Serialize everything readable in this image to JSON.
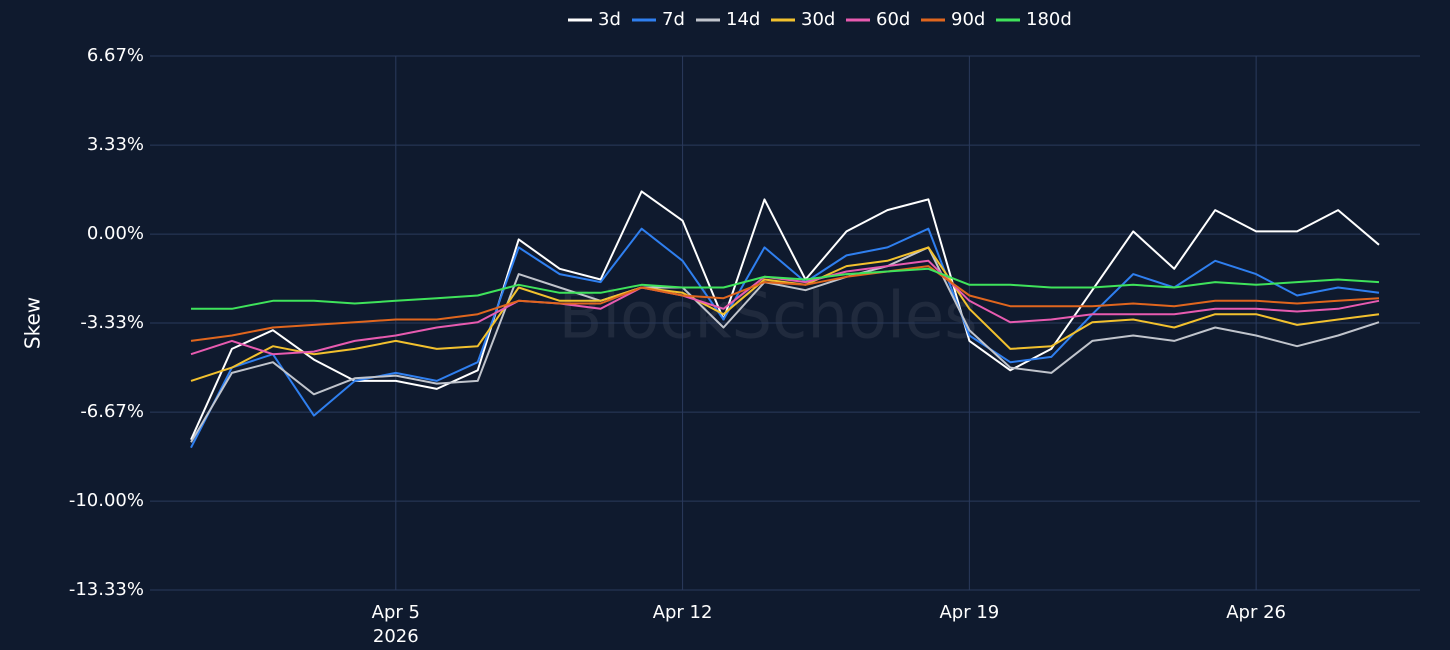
{
  "chart_data": {
    "type": "line",
    "y_label": "Skew",
    "watermark": "BlockScholes",
    "x": [
      "2026-03-31",
      "2026-04-01",
      "2026-04-02",
      "2026-04-03",
      "2026-04-04",
      "2026-04-05",
      "2026-04-06",
      "2026-04-07",
      "2026-04-08",
      "2026-04-09",
      "2026-04-10",
      "2026-04-11",
      "2026-04-12",
      "2026-04-13",
      "2026-04-14",
      "2026-04-15",
      "2026-04-16",
      "2026-04-17",
      "2026-04-18",
      "2026-04-19",
      "2026-04-20",
      "2026-04-21",
      "2026-04-22",
      "2026-04-23",
      "2026-04-24",
      "2026-04-25",
      "2026-04-26",
      "2026-04-27",
      "2026-04-28",
      "2026-04-29"
    ],
    "xlim": [
      "2026-03-30",
      "2026-04-30"
    ],
    "xticks": [
      {
        "value": "2026-04-05",
        "label": "Apr 5"
      },
      {
        "value": "2026-04-12",
        "label": "Apr 12"
      },
      {
        "value": "2026-04-19",
        "label": "Apr 19"
      },
      {
        "value": "2026-04-26",
        "label": "Apr 26"
      }
    ],
    "x_year_label": "2026",
    "ylim": [
      -13.33,
      6.67
    ],
    "yticks": [
      {
        "value": 6.67,
        "label": "6.67%"
      },
      {
        "value": 3.33,
        "label": "3.33%"
      },
      {
        "value": 0,
        "label": "0.00%"
      },
      {
        "value": -3.33,
        "label": "-3.33%"
      },
      {
        "value": -6.67,
        "label": "-6.67%"
      },
      {
        "value": -10,
        "label": "-10.00%"
      },
      {
        "value": -13.33,
        "label": "-13.33%"
      }
    ],
    "grid": true,
    "legend": "top",
    "series": [
      {
        "name": "3d",
        "color": "#ffffff",
        "values": [
          -7.7,
          -4.3,
          -3.6,
          -4.7,
          -5.5,
          -5.5,
          -5.8,
          -5.1,
          -0.2,
          -1.3,
          -1.7,
          1.6,
          0.5,
          -3.2,
          1.3,
          -1.7,
          0.1,
          0.9,
          1.3,
          -4.0,
          -5.1,
          -4.3,
          -2.1,
          0.1,
          -1.3,
          0.9,
          0.1,
          0.1,
          0.9,
          -0.4
        ]
      },
      {
        "name": "7d",
        "color": "#2f7fef",
        "values": [
          -8.0,
          -5.0,
          -4.5,
          -6.8,
          -5.5,
          -5.2,
          -5.5,
          -4.8,
          -0.5,
          -1.5,
          -1.8,
          0.2,
          -1.0,
          -3.2,
          -0.5,
          -1.8,
          -0.8,
          -0.5,
          0.2,
          -3.8,
          -4.8,
          -4.6,
          -3.0,
          -1.5,
          -2.0,
          -1.0,
          -1.5,
          -2.3,
          -2.0,
          -2.2
        ]
      },
      {
        "name": "14d",
        "color": "#c0c4cc",
        "values": [
          -7.8,
          -5.2,
          -4.8,
          -6.0,
          -5.4,
          -5.3,
          -5.6,
          -5.5,
          -1.5,
          -2.0,
          -2.5,
          -2.0,
          -2.0,
          -3.5,
          -1.8,
          -2.1,
          -1.6,
          -1.2,
          -0.5,
          -3.6,
          -5.0,
          -5.2,
          -4.0,
          -3.8,
          -4.0,
          -3.5,
          -3.8,
          -4.2,
          -3.8,
          -3.3
        ]
      },
      {
        "name": "30d",
        "color": "#f2c12e",
        "values": [
          -5.5,
          -5.0,
          -4.2,
          -4.5,
          -4.3,
          -4.0,
          -4.3,
          -4.2,
          -2.0,
          -2.5,
          -2.5,
          -2.0,
          -2.2,
          -3.0,
          -1.7,
          -1.9,
          -1.2,
          -1.0,
          -0.5,
          -2.8,
          -4.3,
          -4.2,
          -3.3,
          -3.2,
          -3.5,
          -3.0,
          -3.0,
          -3.4,
          -3.2,
          -3.0
        ]
      },
      {
        "name": "60d",
        "color": "#e75bb0",
        "values": [
          -4.5,
          -4.0,
          -4.5,
          -4.4,
          -4.0,
          -3.8,
          -3.5,
          -3.3,
          -2.5,
          -2.6,
          -2.8,
          -2.0,
          -2.3,
          -2.8,
          -1.6,
          -1.8,
          -1.4,
          -1.2,
          -1.0,
          -2.5,
          -3.3,
          -3.2,
          -3.0,
          -3.0,
          -3.0,
          -2.8,
          -2.8,
          -2.9,
          -2.8,
          -2.5
        ]
      },
      {
        "name": "90d",
        "color": "#e0661e",
        "values": [
          -4.0,
          -3.8,
          -3.5,
          -3.4,
          -3.3,
          -3.2,
          -3.2,
          -3.0,
          -2.5,
          -2.6,
          -2.6,
          -2.0,
          -2.3,
          -2.4,
          -1.8,
          -1.9,
          -1.6,
          -1.4,
          -1.2,
          -2.3,
          -2.7,
          -2.7,
          -2.7,
          -2.6,
          -2.7,
          -2.5,
          -2.5,
          -2.6,
          -2.5,
          -2.4
        ]
      },
      {
        "name": "180d",
        "color": "#3fe35b",
        "values": [
          -2.8,
          -2.8,
          -2.5,
          -2.5,
          -2.6,
          -2.5,
          -2.4,
          -2.3,
          -1.9,
          -2.2,
          -2.2,
          -1.9,
          -2.0,
          -2.0,
          -1.6,
          -1.7,
          -1.5,
          -1.4,
          -1.3,
          -1.9,
          -1.9,
          -2.0,
          -2.0,
          -1.9,
          -2.0,
          -1.8,
          -1.9,
          -1.8,
          -1.7,
          -1.8
        ]
      }
    ]
  }
}
